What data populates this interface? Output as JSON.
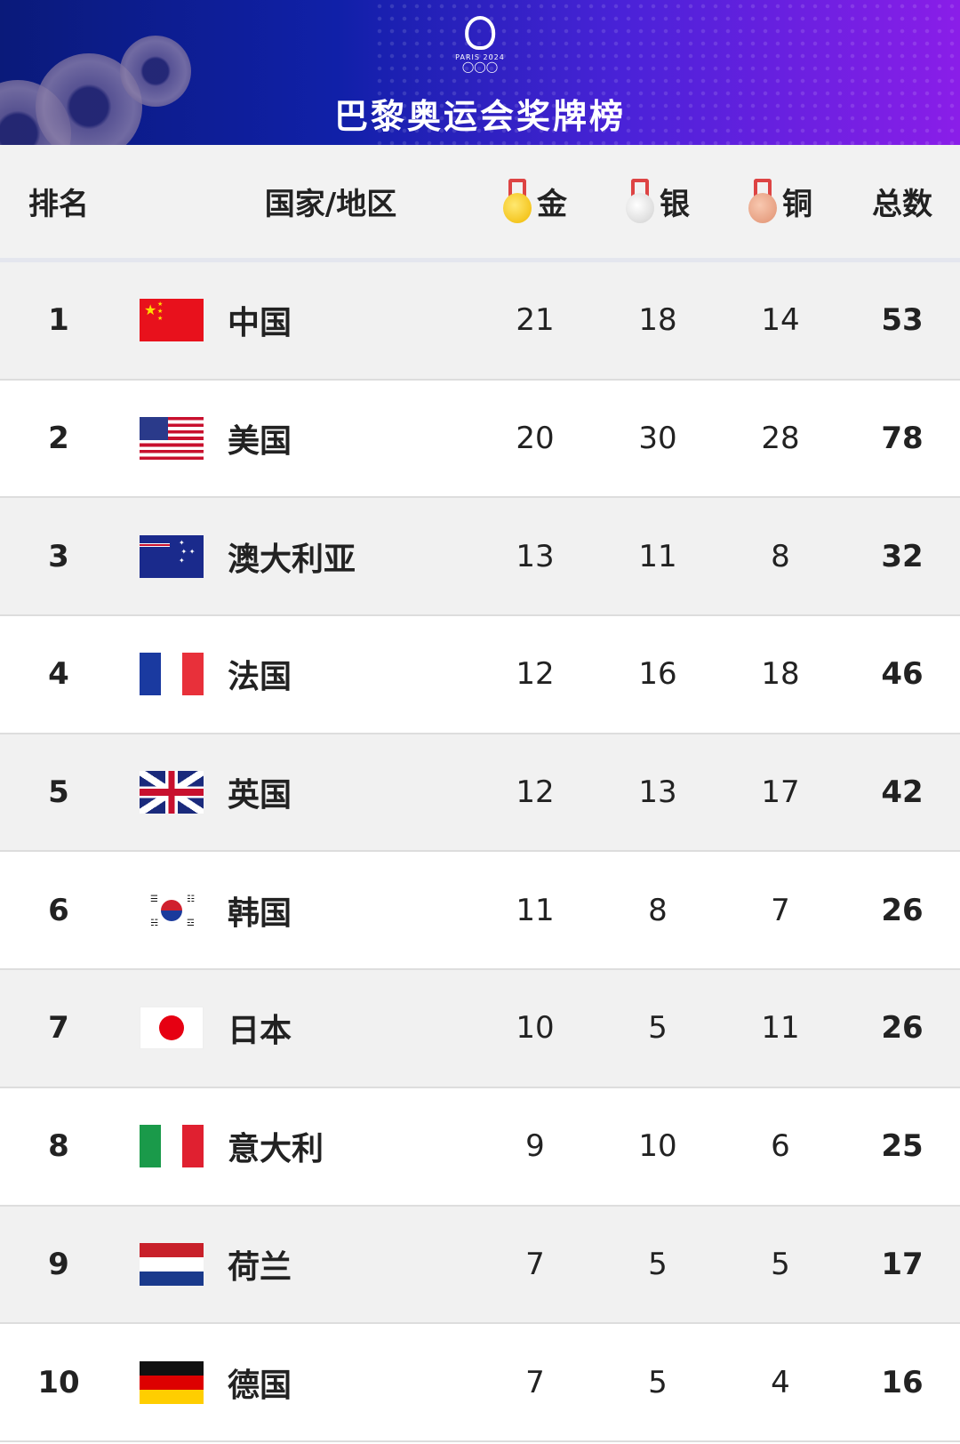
{
  "banner": {
    "title": "巴黎奥运会奖牌榜",
    "logo_text": "PARIS 2024",
    "logo_icon": "paris-2024-olympic-logo"
  },
  "header": {
    "rank": "排名",
    "country": "国家/地区",
    "gold": "金",
    "silver": "银",
    "bronze": "铜",
    "total": "总数"
  },
  "colors": {
    "gold": "#f2c21a",
    "silver": "#d8d8d8",
    "bronze": "#e4a080",
    "banner_start": "#0a1a7a",
    "banner_end": "#8a1ee8"
  },
  "rows": [
    {
      "rank": "1",
      "country": "中国",
      "flag": "china",
      "gold": "21",
      "silver": "18",
      "bronze": "14",
      "total": "53"
    },
    {
      "rank": "2",
      "country": "美国",
      "flag": "usa",
      "gold": "20",
      "silver": "30",
      "bronze": "28",
      "total": "78"
    },
    {
      "rank": "3",
      "country": "澳大利亚",
      "flag": "australia",
      "gold": "13",
      "silver": "11",
      "bronze": "8",
      "total": "32"
    },
    {
      "rank": "4",
      "country": "法国",
      "flag": "france",
      "gold": "12",
      "silver": "16",
      "bronze": "18",
      "total": "46"
    },
    {
      "rank": "5",
      "country": "英国",
      "flag": "uk",
      "gold": "12",
      "silver": "13",
      "bronze": "17",
      "total": "42"
    },
    {
      "rank": "6",
      "country": "韩国",
      "flag": "korea",
      "gold": "11",
      "silver": "8",
      "bronze": "7",
      "total": "26"
    },
    {
      "rank": "7",
      "country": "日本",
      "flag": "japan",
      "gold": "10",
      "silver": "5",
      "bronze": "11",
      "total": "26"
    },
    {
      "rank": "8",
      "country": "意大利",
      "flag": "italy",
      "gold": "9",
      "silver": "10",
      "bronze": "6",
      "total": "25"
    },
    {
      "rank": "9",
      "country": "荷兰",
      "flag": "netherlands",
      "gold": "7",
      "silver": "5",
      "bronze": "5",
      "total": "17"
    },
    {
      "rank": "10",
      "country": "德国",
      "flag": "germany",
      "gold": "7",
      "silver": "5",
      "bronze": "4",
      "total": "16"
    }
  ]
}
